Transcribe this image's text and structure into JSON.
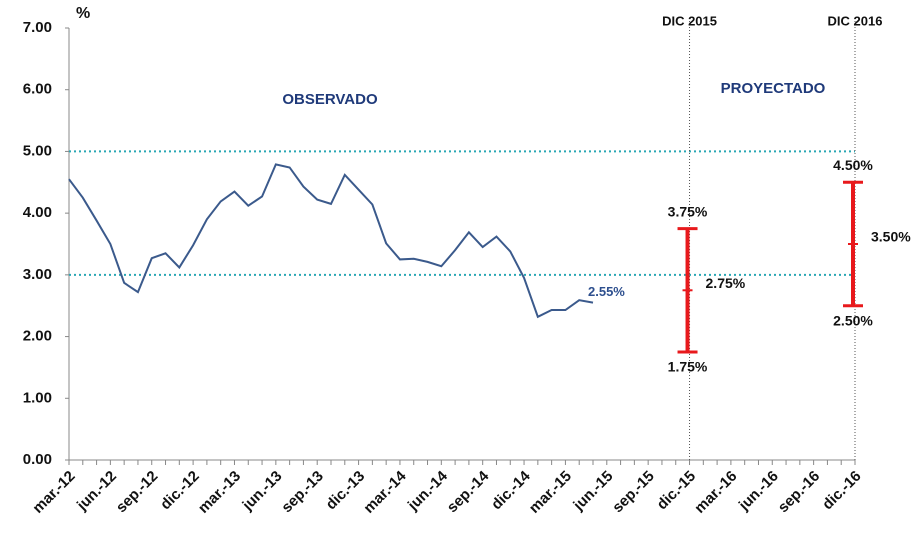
{
  "chart_data": {
    "type": "line",
    "y_unit_label": "%",
    "categories": [
      "mar.-12",
      null,
      null,
      "jun.-12",
      null,
      null,
      "sep.-12",
      null,
      null,
      "dic.-12",
      null,
      null,
      "mar.-13",
      null,
      null,
      "jun.-13",
      null,
      null,
      "sep.-13",
      null,
      null,
      "dic.-13",
      null,
      null,
      "mar.-14",
      null,
      null,
      "jun.-14",
      null,
      null,
      "sep.-14",
      null,
      null,
      "dic.-14",
      null,
      null,
      "mar.-15",
      null,
      null,
      "jun.-15",
      null,
      null,
      "sep.-15",
      null,
      null,
      "dic.-15",
      null,
      null,
      "mar.-16",
      null,
      null,
      "jun.-16",
      null,
      null,
      "sep.-16",
      null,
      null,
      "dic.-16"
    ],
    "series": [
      {
        "color": "#3b5a8c",
        "values": [
          4.55,
          4.25,
          3.88,
          3.5,
          2.87,
          2.72,
          3.27,
          3.35,
          3.12,
          3.48,
          3.9,
          4.19,
          4.35,
          4.12,
          4.27,
          4.79,
          4.74,
          4.43,
          4.22,
          4.15,
          4.62,
          4.38,
          4.14,
          3.51,
          3.25,
          3.26,
          3.21,
          3.14,
          3.4,
          3.69,
          3.45,
          3.62,
          3.38,
          2.95,
          2.32,
          2.43,
          2.43,
          2.59,
          2.55,
          null,
          null,
          null,
          null,
          null,
          null,
          null,
          null,
          null,
          null,
          null,
          null,
          null,
          null,
          null,
          null,
          null,
          null,
          null
        ],
        "value_labels": [
          null,
          null,
          null,
          null,
          null,
          null,
          null,
          null,
          null,
          null,
          null,
          null,
          null,
          null,
          null,
          null,
          null,
          null,
          null,
          null,
          null,
          null,
          null,
          null,
          null,
          null,
          null,
          null,
          null,
          null,
          null,
          null,
          null,
          null,
          null,
          null,
          null,
          null,
          "2.55%",
          null,
          null,
          null,
          null,
          null,
          null,
          null,
          null,
          null,
          null,
          null,
          null,
          null,
          null,
          null,
          null,
          null,
          null,
          null
        ]
      }
    ],
    "ylim": [
      0,
      7
    ],
    "yticks": [
      {
        "value": 0,
        "label": "0.00"
      },
      {
        "value": 1,
        "label": "1.00"
      },
      {
        "value": 2,
        "label": "2.00"
      },
      {
        "value": 3,
        "label": "3.00"
      },
      {
        "value": 4,
        "label": "4.00"
      },
      {
        "value": 5,
        "label": "5.00"
      },
      {
        "value": 6,
        "label": "6.00"
      },
      {
        "value": 7,
        "label": "7.00"
      }
    ],
    "reference_lines": [
      {
        "value": 5,
        "color": "#2aa6b4"
      },
      {
        "value": 3,
        "color": "#2aa6b4"
      }
    ],
    "projections": [
      {
        "label": "DIC 2015",
        "category": "dic.-15",
        "color": "#e8191c",
        "high": 3.75,
        "high_label": "3.75%",
        "mid": 2.75,
        "mid_label": "2.75%",
        "low": 1.75,
        "low_label": "1.75%"
      },
      {
        "label": "DIC 2016",
        "category": "dic.-16",
        "color": "#e8191c",
        "high": 4.5,
        "high_label": "4.50%",
        "mid": 3.5,
        "mid_label": "3.50%",
        "low": 2.5,
        "low_label": "2.50%"
      }
    ],
    "annotations": [
      "OBSERVADO",
      "PROYECTADO"
    ]
  }
}
